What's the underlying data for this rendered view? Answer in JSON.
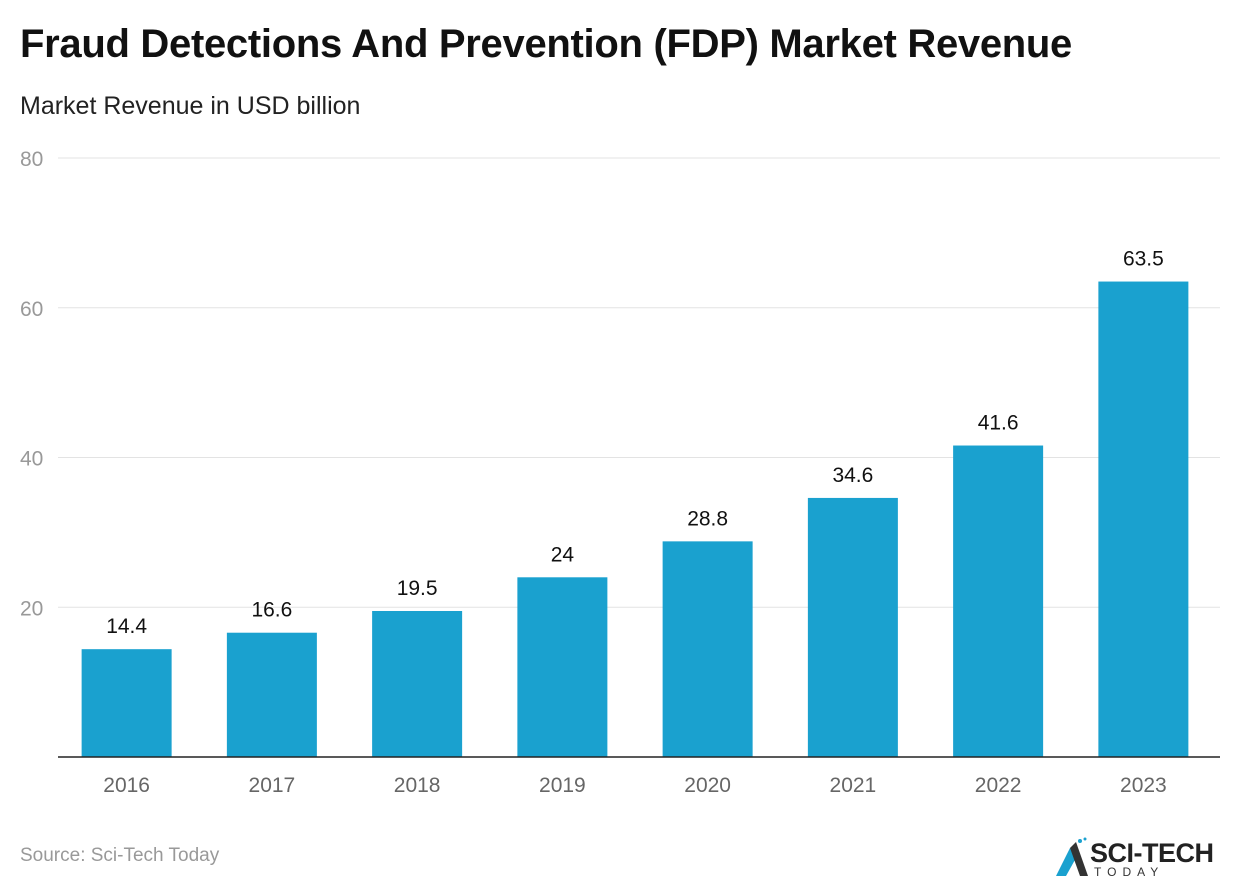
{
  "title": "Fraud Detections And Prevention (FDP) Market Revenue",
  "subtitle": "Market Revenue in USD billion",
  "source": "Source: Sci-Tech Today",
  "logo": {
    "main": "SCI-TECH",
    "sub": "TODAY"
  },
  "colors": {
    "bar": "#1aa1cf",
    "grid": "#e3e3e3",
    "axis": "#222222",
    "tick_label": "#999999"
  },
  "chart_data": {
    "type": "bar",
    "title": "Fraud Detections And Prevention (FDP) Market Revenue",
    "subtitle": "Market Revenue in USD billion",
    "xlabel": "",
    "ylabel": "",
    "categories": [
      "2016",
      "2017",
      "2018",
      "2019",
      "2020",
      "2021",
      "2022",
      "2023"
    ],
    "values": [
      14.4,
      16.6,
      19.5,
      24,
      28.8,
      34.6,
      41.6,
      63.5
    ],
    "data_labels": [
      "14.4",
      "16.6",
      "19.5",
      "24",
      "28.8",
      "34.6",
      "41.6",
      "63.5"
    ],
    "ylim": [
      0,
      80
    ],
    "yticks": [
      20,
      40,
      60,
      80
    ],
    "grid": true,
    "legend": "none"
  }
}
